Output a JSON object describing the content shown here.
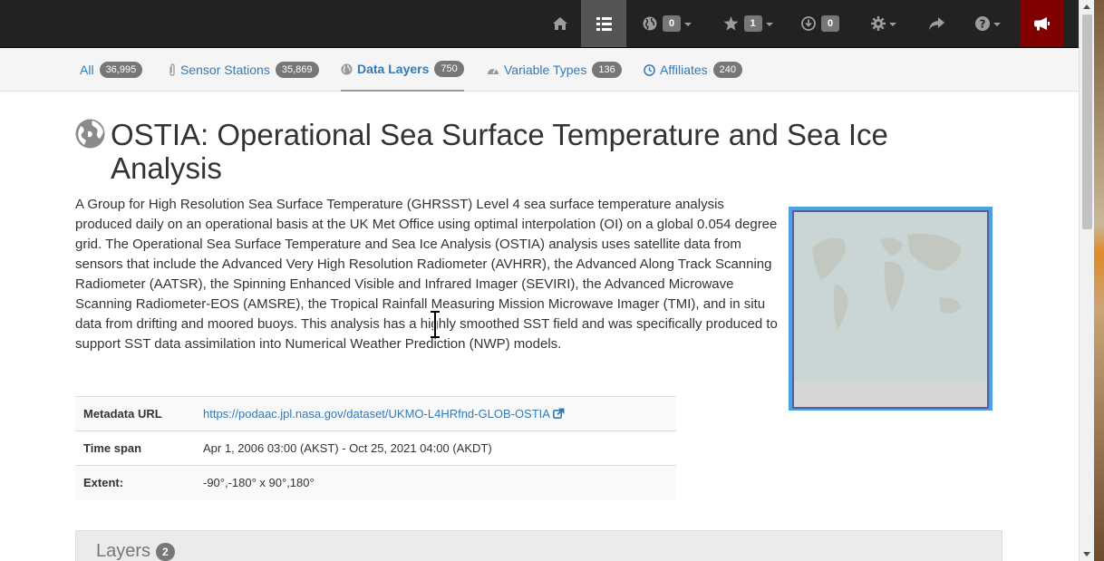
{
  "navbar": {
    "items": [
      {
        "name": "home",
        "icon": "home-icon"
      },
      {
        "name": "catalog",
        "icon": "list-icon",
        "active": true
      },
      {
        "name": "maps",
        "icon": "globe-icon",
        "badge": "0"
      },
      {
        "name": "favorites",
        "icon": "star-icon",
        "badge": "1"
      },
      {
        "name": "downloads",
        "icon": "download-icon",
        "badge": "0"
      },
      {
        "name": "settings",
        "icon": "gear-icon"
      },
      {
        "name": "share",
        "icon": "share-icon"
      },
      {
        "name": "help",
        "icon": "question-icon"
      },
      {
        "name": "announcements",
        "icon": "bullhorn-icon"
      }
    ]
  },
  "tabs": [
    {
      "label": "All",
      "count": "36,995",
      "icon": ""
    },
    {
      "label": "Sensor Stations",
      "count": "35,869",
      "icon": "paperclip-icon"
    },
    {
      "label": "Data Layers",
      "count": "750",
      "icon": "globe-icon",
      "active": true
    },
    {
      "label": "Variable Types",
      "count": "136",
      "icon": "gauge-icon"
    },
    {
      "label": "Affiliates",
      "count": "240",
      "icon": "clock-icon"
    }
  ],
  "page": {
    "title": "OSTIA: Operational Sea Surface Temperature and Sea Ice Analysis",
    "description": "A Group for High Resolution Sea Surface Temperature (GHRSST) Level 4 sea surface temperature analysis produced daily on an operational basis at the UK Met Office using optimal interpolation (OI) on a global 0.054 degree grid. The Operational Sea Surface Temperature and Sea Ice Analysis (OSTIA) analysis uses satellite data from sensors that include the Advanced Very High Resolution Radiometer (AVHRR), the Advanced Along Track Scanning Radiometer (AATSR), the Spinning Enhanced Visible and Infrared Imager (SEVIRI), the Advanced Microwave Scanning Radiometer-EOS (AMSRE), the Tropical Rainfall Measuring Mission Microwave Imager (TMI), and in situ data from drifting and moored buoys. This analysis has a highly smoothed SST field and was specifically produced to support SST data assimilation into Numerical Weather Prediction (NWP) models."
  },
  "metadata": {
    "url_label": "Metadata URL",
    "url_value": "https://podaac.jpl.nasa.gov/dataset/UKMO-L4HRfnd-GLOB-OSTIA",
    "timespan_label": "Time span",
    "timespan_value": "Apr 1, 2006 03:00 (AKST) - Oct 25, 2021 04:00 (AKDT)",
    "extent_label": "Extent:",
    "extent_value": "-90°,-180° x 90°,180°"
  },
  "layers": {
    "title": "Layers",
    "count": "2"
  },
  "colors": {
    "navbar_bg": "#222222",
    "link": "#337ab7",
    "badge": "#777777",
    "alert": "#800000"
  }
}
